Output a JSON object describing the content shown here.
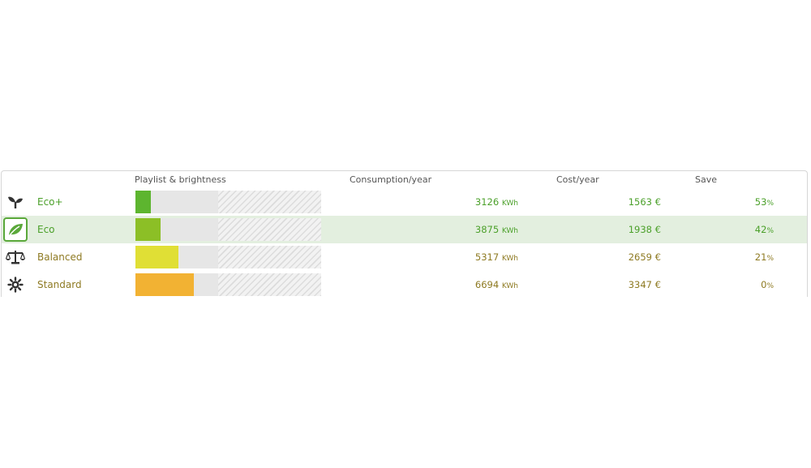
{
  "header": {
    "playlist": "Playlist & brightness",
    "consumption": "Consumption/year",
    "cost": "Cost/year",
    "save": "Save"
  },
  "units": {
    "energy": "KWh",
    "currency": "€",
    "percent": "%"
  },
  "modes": [
    {
      "name": "Eco+",
      "icon": "sprout-icon",
      "selected": false,
      "bar_fraction": 0.083,
      "bar_color": "#5db52f",
      "consumption": "3126",
      "cost": "1563",
      "save": "53",
      "text_color": "#4ba02a"
    },
    {
      "name": "Eco",
      "icon": "leaf-icon",
      "selected": true,
      "bar_fraction": 0.135,
      "bar_color": "#8cbf26",
      "consumption": "3875",
      "cost": "1938",
      "save": "42",
      "text_color": "#4ba02a"
    },
    {
      "name": "Balanced",
      "icon": "balance-scale-icon",
      "selected": false,
      "bar_fraction": 0.231,
      "bar_color": "#e0df35",
      "consumption": "5317",
      "cost": "2659",
      "save": "21",
      "text_color": "#8e7a22"
    },
    {
      "name": "Standard",
      "icon": "sun-icon",
      "selected": false,
      "bar_fraction": 0.314,
      "bar_color": "#f2b233",
      "consumption": "6694",
      "cost": "3347",
      "save": "0",
      "text_color": "#8e7a22"
    }
  ]
}
